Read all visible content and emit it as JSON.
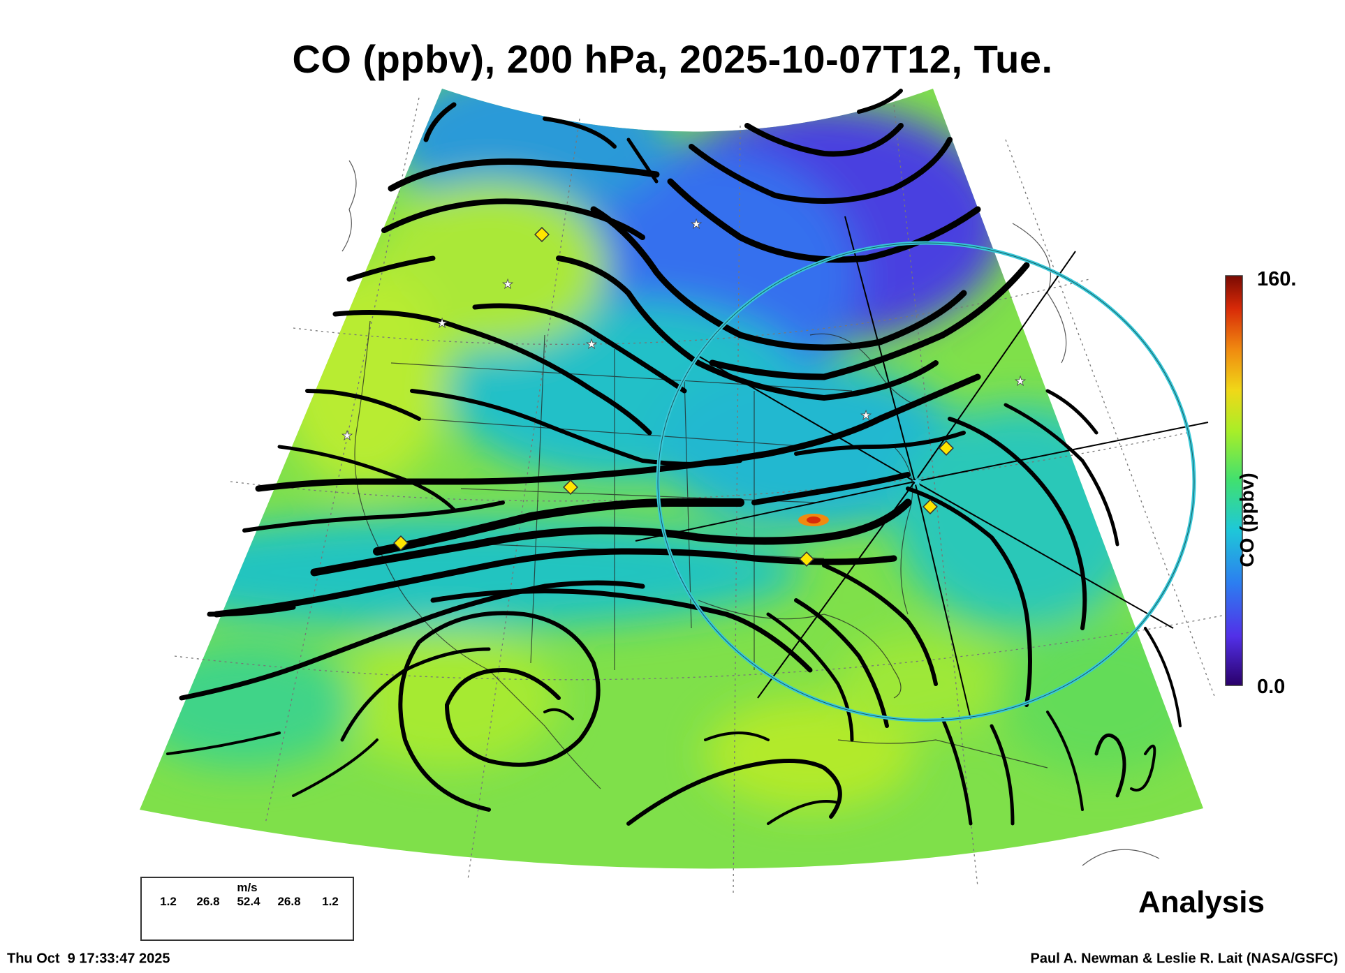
{
  "title": "CO (ppbv), 200 hPa, 2025-10-07T12, Tue.",
  "colorbar": {
    "label": "CO (ppbv)",
    "max_label": "160.",
    "min_label": "0.0",
    "stops": [
      "#2a006a",
      "#5230e8",
      "#2c7ef0",
      "#1ec8d8",
      "#40e070",
      "#a8ee28",
      "#f0d818",
      "#f08a10",
      "#d82a08",
      "#7a0a02"
    ]
  },
  "corner_label": "Analysis",
  "footer": {
    "timestamp": "Thu Oct  9 17:33:47 2025",
    "credit": "Paul A. Newman & Leslie R. Lait (NASA/GSFC)"
  },
  "wind_legend": {
    "unit": "m/s",
    "values": [
      "1.2",
      "26.8",
      "52.4",
      "26.8",
      "1.2"
    ]
  },
  "colors": {
    "low_co": "#4a3fe0",
    "mid_co": "#21c9b0",
    "high_co": "#b6ec2a",
    "circle": "#38c8d8",
    "stations_diamond": "#ffe600"
  }
}
